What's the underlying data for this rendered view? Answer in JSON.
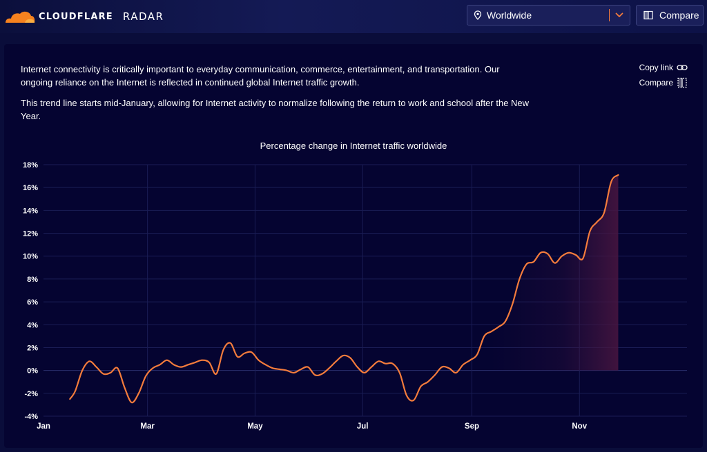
{
  "header": {
    "brand_word": "CLOUDFLARE",
    "brand_product": "RADAR",
    "location_select": {
      "value": "Worldwide",
      "icon": "map-pin-icon"
    },
    "compare_button": {
      "label": "Compare",
      "icon": "compare-icon"
    }
  },
  "card": {
    "paragraphs": [
      "Internet connectivity is critically important to everyday communication, commerce, entertainment, and transportation. Our ongoing reliance on the Internet is reflected in continued global Internet traffic growth.",
      "This trend line starts mid-January, allowing for Internet activity to normalize following the return to work and school after the New Year."
    ],
    "actions": {
      "copy_link": "Copy link",
      "compare": "Compare"
    }
  },
  "colors": {
    "line": "#f47c3c",
    "accent": "#f6821f",
    "background": "#050431"
  },
  "chart_data": {
    "type": "line",
    "title": "Percentage change in Internet traffic worldwide",
    "y_ticks": [
      "18%",
      "16%",
      "14%",
      "12%",
      "10%",
      "8%",
      "6%",
      "4%",
      "2%",
      "0%",
      "-2%",
      "-4%"
    ],
    "x_ticks": [
      "Jan",
      "Mar",
      "May",
      "Jul",
      "Sep",
      "Nov"
    ],
    "ylim": [
      -4,
      18
    ],
    "grid": true,
    "series": [
      {
        "x": [
          15,
          18,
          22,
          26,
          30,
          34,
          38,
          42,
          46,
          50,
          54,
          58,
          62,
          66,
          70,
          74,
          78,
          82,
          86,
          90,
          94,
          98,
          102,
          106,
          110,
          114,
          118,
          122,
          126,
          130,
          134,
          138,
          142,
          146,
          150,
          154,
          158,
          162,
          166,
          170,
          174,
          178,
          182,
          186,
          190,
          194,
          198,
          202,
          206,
          210,
          214,
          218,
          222,
          226,
          230,
          234,
          238,
          242,
          246,
          250,
          254,
          258,
          262,
          266,
          270,
          274,
          278,
          282,
          286,
          290,
          294,
          298,
          302,
          306,
          310,
          314,
          318,
          322,
          326
        ],
        "values": [
          -2.5,
          -1.8,
          0.0,
          0.8,
          0.3,
          -0.3,
          -0.2,
          0.2,
          -1.5,
          -2.8,
          -2.0,
          -0.5,
          0.2,
          0.5,
          0.9,
          0.5,
          0.3,
          0.5,
          0.7,
          0.9,
          0.7,
          -0.3,
          1.8,
          2.4,
          1.2,
          1.5,
          1.6,
          0.9,
          0.5,
          0.2,
          0.1,
          0.0,
          -0.2,
          0.1,
          0.3,
          -0.4,
          -0.3,
          0.2,
          0.8,
          1.3,
          1.1,
          0.3,
          -0.2,
          0.3,
          0.8,
          0.6,
          0.6,
          -0.2,
          -2.2,
          -2.6,
          -1.4,
          -1.0,
          -0.4,
          0.3,
          0.2,
          -0.2,
          0.5,
          0.9,
          1.4,
          3.0,
          3.4,
          3.8,
          4.3,
          5.8,
          8.0,
          9.3,
          9.5,
          10.3,
          10.2,
          9.4,
          10.0,
          10.3,
          10.1,
          9.8,
          12.2,
          13.0,
          13.8,
          16.5,
          17.1
        ]
      }
    ]
  }
}
